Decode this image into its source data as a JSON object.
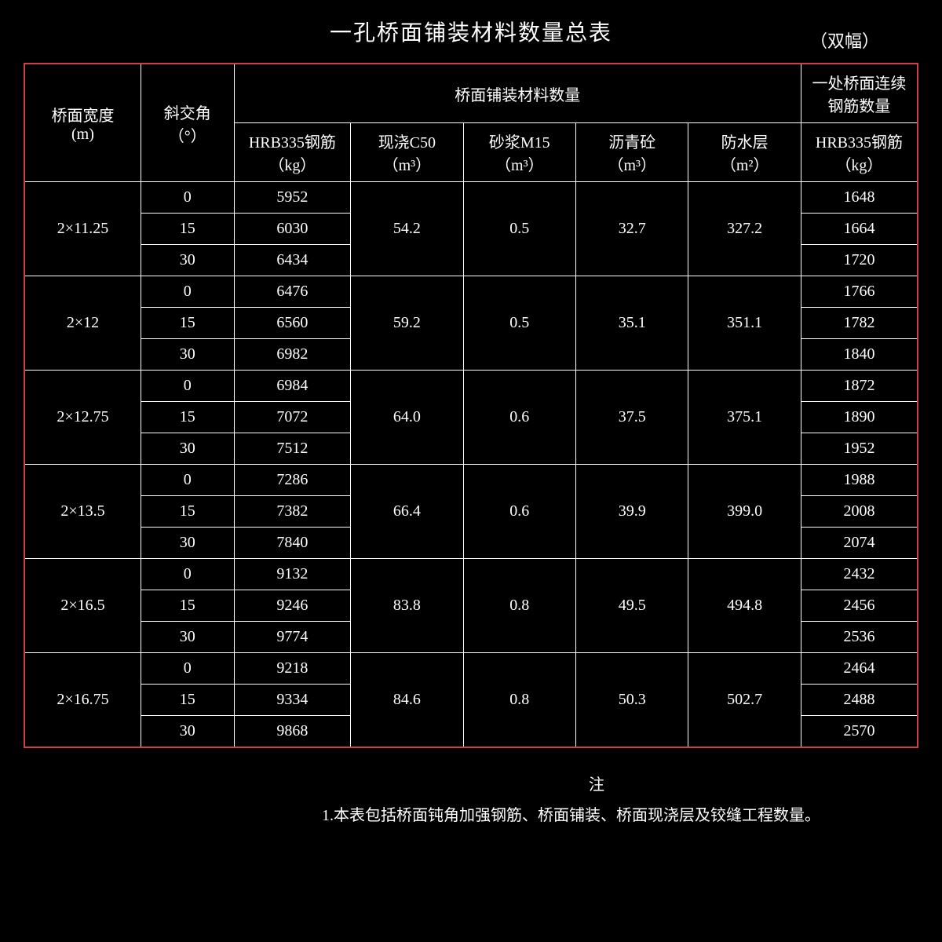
{
  "title": "一孔桥面铺装材料数量总表",
  "subtitle": "（双幅）",
  "headers": {
    "col1_l1": "桥面宽度",
    "col1_l2": "(m)",
    "col2_l1": "斜交角",
    "col2_l2": "（°）",
    "group_header": "桥面铺装材料数量",
    "col3_l1": "HRB335钢筋",
    "col3_l2": "（kg）",
    "col4_l1": "现浇C50",
    "col4_l2": "（m³）",
    "col5_l1": "砂浆M15",
    "col5_l2": "（m³）",
    "col6_l1": "沥青砼",
    "col6_l2": "（m³）",
    "col7_l1": "防水层",
    "col7_l2": "（m²）",
    "col8_l1": "一处桥面连续钢筋数量",
    "col8_l2": "HRB335钢筋",
    "col8_l3": "（kg）"
  },
  "groups": [
    {
      "width": "2×11.25",
      "c50": "54.2",
      "m15": "0.5",
      "asphalt": "32.7",
      "waterproof": "327.2",
      "rows": [
        {
          "angle": "0",
          "hrb": "5952",
          "cont": "1648"
        },
        {
          "angle": "15",
          "hrb": "6030",
          "cont": "1664"
        },
        {
          "angle": "30",
          "hrb": "6434",
          "cont": "1720"
        }
      ]
    },
    {
      "width": "2×12",
      "c50": "59.2",
      "m15": "0.5",
      "asphalt": "35.1",
      "waterproof": "351.1",
      "rows": [
        {
          "angle": "0",
          "hrb": "6476",
          "cont": "1766"
        },
        {
          "angle": "15",
          "hrb": "6560",
          "cont": "1782"
        },
        {
          "angle": "30",
          "hrb": "6982",
          "cont": "1840"
        }
      ]
    },
    {
      "width": "2×12.75",
      "c50": "64.0",
      "m15": "0.6",
      "asphalt": "37.5",
      "waterproof": "375.1",
      "rows": [
        {
          "angle": "0",
          "hrb": "6984",
          "cont": "1872"
        },
        {
          "angle": "15",
          "hrb": "7072",
          "cont": "1890"
        },
        {
          "angle": "30",
          "hrb": "7512",
          "cont": "1952"
        }
      ]
    },
    {
      "width": "2×13.5",
      "c50": "66.4",
      "m15": "0.6",
      "asphalt": "39.9",
      "waterproof": "399.0",
      "rows": [
        {
          "angle": "0",
          "hrb": "7286",
          "cont": "1988"
        },
        {
          "angle": "15",
          "hrb": "7382",
          "cont": "2008"
        },
        {
          "angle": "30",
          "hrb": "7840",
          "cont": "2074"
        }
      ]
    },
    {
      "width": "2×16.5",
      "c50": "83.8",
      "m15": "0.8",
      "asphalt": "49.5",
      "waterproof": "494.8",
      "rows": [
        {
          "angle": "0",
          "hrb": "9132",
          "cont": "2432"
        },
        {
          "angle": "15",
          "hrb": "9246",
          "cont": "2456"
        },
        {
          "angle": "30",
          "hrb": "9774",
          "cont": "2536"
        }
      ]
    },
    {
      "width": "2×16.75",
      "c50": "84.6",
      "m15": "0.8",
      "asphalt": "50.3",
      "waterproof": "502.7",
      "rows": [
        {
          "angle": "0",
          "hrb": "9218",
          "cont": "2464"
        },
        {
          "angle": "15",
          "hrb": "9334",
          "cont": "2488"
        },
        {
          "angle": "30",
          "hrb": "9868",
          "cont": "2570"
        }
      ]
    }
  ],
  "notes": {
    "label": "注",
    "line1": "1.本表包括桥面钝角加强钢筋、桥面铺装、桥面现浇层及铰缝工程数量。"
  },
  "style": {
    "bg": "#000000",
    "fg": "#ffffff",
    "accent": "#d04040",
    "title_fontsize": 28,
    "cell_fontsize": 20
  }
}
